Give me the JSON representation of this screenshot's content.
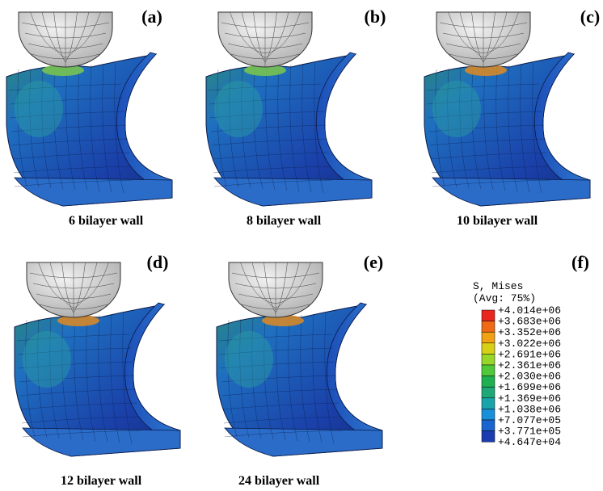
{
  "panels": [
    {
      "label": "(a)",
      "caption": "6 bilayer wall"
    },
    {
      "label": "(b)",
      "caption": "8 bilayer wall"
    },
    {
      "label": "(c)",
      "caption": "10 bilayer wall"
    },
    {
      "label": "(d)",
      "caption": "12 bilayer wall"
    },
    {
      "label": "(e)",
      "caption": "24 bilayer wall"
    }
  ],
  "legend": {
    "label": "(f)",
    "title": "S, Mises",
    "subtitle": "(Avg: 75%)",
    "values": [
      "+4.014e+06",
      "+3.683e+06",
      "+3.352e+06",
      "+3.022e+06",
      "+2.691e+06",
      "+2.361e+06",
      "+2.030e+06",
      "+1.699e+06",
      "+1.369e+06",
      "+1.038e+06",
      "+7.077e+05",
      "+3.771e+05",
      "+4.647e+04"
    ]
  }
}
